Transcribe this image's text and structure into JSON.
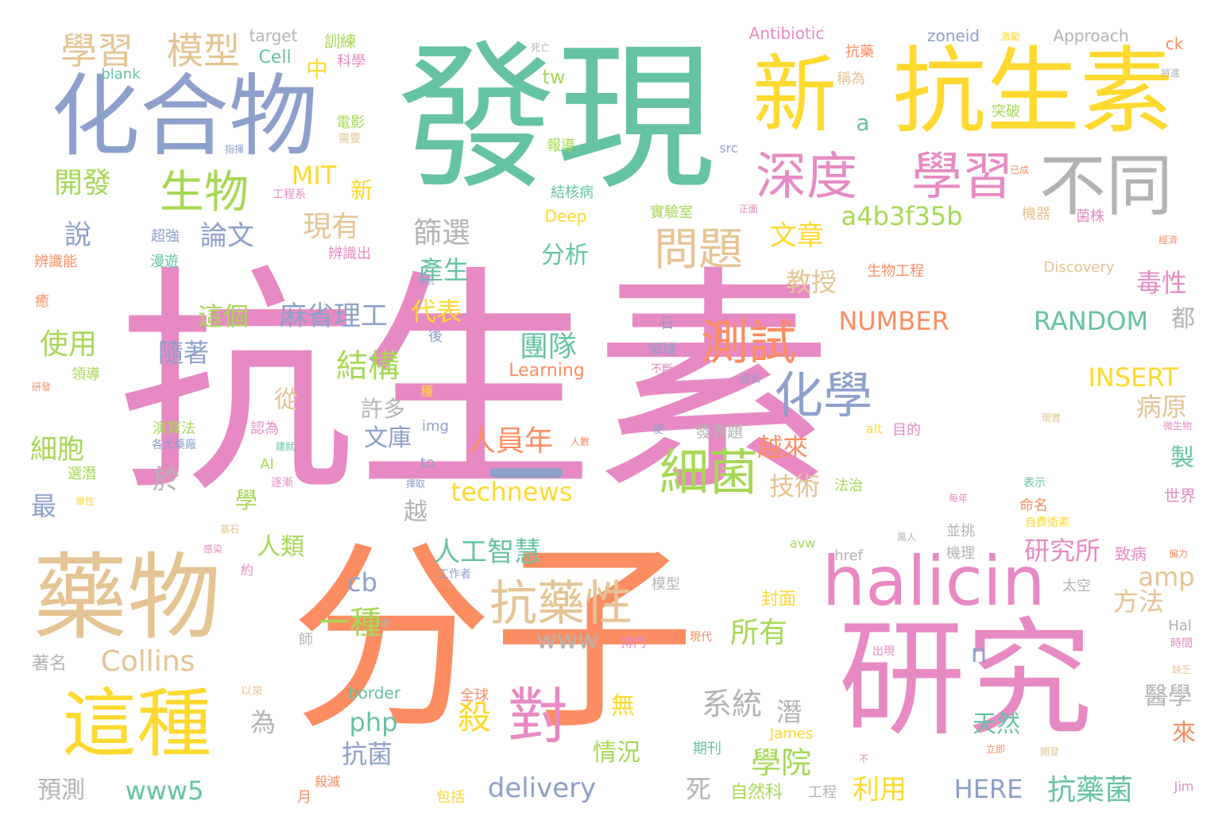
{
  "palette": {
    "pink": "#e78ac3",
    "orange": "#fc8d62",
    "teal": "#66c2a5",
    "blue": "#8da0cb",
    "lime": "#a6d854",
    "yellow": "#ffd92f",
    "tan": "#e5c494",
    "gray": "#b3b3b3"
  },
  "words": [
    {
      "text": "抗生素",
      "color": "pink"
    },
    {
      "text": "分子",
      "color": "orange"
    },
    {
      "text": "發現",
      "color": "teal"
    },
    {
      "text": "研究",
      "color": "pink"
    },
    {
      "text": "化合物",
      "color": "blue"
    },
    {
      "text": "抗生素",
      "color": "yellow"
    },
    {
      "text": "新",
      "color": "yellow"
    },
    {
      "text": "藥物",
      "color": "tan"
    },
    {
      "text": "halicin",
      "color": "pink"
    },
    {
      "text": "這種",
      "color": "yellow"
    },
    {
      "text": "不同",
      "color": "gray"
    },
    {
      "text": "深度",
      "color": "pink"
    },
    {
      "text": "學習",
      "color": "pink"
    },
    {
      "text": "生物",
      "color": "lime"
    },
    {
      "text": "對",
      "color": "pink"
    },
    {
      "text": "細菌",
      "color": "lime"
    },
    {
      "text": "化學",
      "color": "blue"
    },
    {
      "text": "測試",
      "color": "orange"
    },
    {
      "text": "抗藥性",
      "color": "tan"
    },
    {
      "text": "問題",
      "color": "tan"
    },
    {
      "text": "學習",
      "color": "tan"
    },
    {
      "text": "模型",
      "color": "tan"
    },
    {
      "text": "開發",
      "color": "lime"
    },
    {
      "text": "a4b3f35b",
      "color": "lime"
    },
    {
      "text": "MIT",
      "color": "yellow"
    },
    {
      "text": "論文",
      "color": "blue"
    },
    {
      "text": "現有",
      "color": "tan"
    },
    {
      "text": "篩選",
      "color": "gray"
    },
    {
      "text": "文章",
      "color": "yellow"
    },
    {
      "text": "分析",
      "color": "teal"
    },
    {
      "text": "產生",
      "color": "teal"
    },
    {
      "text": "麻省理工",
      "color": "blue"
    },
    {
      "text": "這個",
      "color": "lime"
    },
    {
      "text": "代表",
      "color": "yellow"
    },
    {
      "text": "教授",
      "color": "tan"
    },
    {
      "text": "NUMBER",
      "color": "orange"
    },
    {
      "text": "RANDOM",
      "color": "teal"
    },
    {
      "text": "毒性",
      "color": "pink"
    },
    {
      "text": "使用",
      "color": "lime"
    },
    {
      "text": "隨著",
      "color": "blue"
    },
    {
      "text": "團隊",
      "color": "teal"
    },
    {
      "text": "結構",
      "color": "lime"
    },
    {
      "text": "INSERT",
      "color": "yellow"
    },
    {
      "text": "病原",
      "color": "tan"
    },
    {
      "text": "人員年",
      "color": "orange"
    },
    {
      "text": "許多",
      "color": "gray"
    },
    {
      "text": "文庫",
      "color": "blue"
    },
    {
      "text": "細胞",
      "color": "lime"
    },
    {
      "text": "technews",
      "color": "yellow"
    },
    {
      "text": "技術",
      "color": "tan"
    },
    {
      "text": "越來",
      "color": "orange"
    },
    {
      "text": "人工智慧",
      "color": "teal"
    },
    {
      "text": "研究所",
      "color": "pink"
    },
    {
      "text": "amp",
      "color": "tan"
    },
    {
      "text": "方法",
      "color": "tan"
    },
    {
      "text": "一種",
      "color": "lime"
    },
    {
      "text": "所有",
      "color": "lime"
    },
    {
      "text": "www",
      "color": "gray"
    },
    {
      "text": "Collins",
      "color": "tan"
    },
    {
      "text": "系統",
      "color": "gray"
    },
    {
      "text": "php",
      "color": "teal"
    },
    {
      "text": "殺",
      "color": "yellow"
    },
    {
      "text": "學院",
      "color": "lime"
    },
    {
      "text": "天然",
      "color": "teal"
    },
    {
      "text": "醫學",
      "color": "gray"
    },
    {
      "text": "抗菌",
      "color": "blue"
    },
    {
      "text": "情況",
      "color": "lime"
    },
    {
      "text": "www5",
      "color": "teal"
    },
    {
      "text": "delivery",
      "color": "blue"
    },
    {
      "text": "利用",
      "color": "yellow"
    },
    {
      "text": "抗藥菌",
      "color": "teal"
    },
    {
      "text": "HERE",
      "color": "blue"
    },
    {
      "text": "預測",
      "color": "gray"
    },
    {
      "text": "著名",
      "color": "gray"
    },
    {
      "text": "人類",
      "color": "lime"
    },
    {
      "text": "cb",
      "color": "blue"
    },
    {
      "text": "最",
      "color": "blue"
    },
    {
      "text": "於",
      "color": "gray"
    },
    {
      "text": "從",
      "color": "tan"
    },
    {
      "text": "學",
      "color": "lime"
    },
    {
      "text": "越",
      "color": "gray"
    },
    {
      "text": "說",
      "color": "blue"
    },
    {
      "text": "為",
      "color": "gray"
    },
    {
      "text": "死",
      "color": "gray"
    },
    {
      "text": "潛",
      "color": "gray"
    },
    {
      "text": "無",
      "color": "yellow"
    },
    {
      "text": "來",
      "color": "orange"
    },
    {
      "text": "製",
      "color": "teal"
    },
    {
      "text": "都",
      "color": "gray"
    },
    {
      "text": "n",
      "color": "blue"
    },
    {
      "text": "a",
      "color": "teal"
    },
    {
      "text": "tw",
      "color": "lime"
    },
    {
      "text": "新",
      "color": "yellow"
    },
    {
      "text": "中",
      "color": "yellow"
    },
    {
      "text": "Cell",
      "color": "teal"
    },
    {
      "text": "target",
      "color": "gray"
    },
    {
      "text": "blank",
      "color": "teal"
    },
    {
      "text": "訓練",
      "color": "lime"
    },
    {
      "text": "科學",
      "color": "pink"
    },
    {
      "text": "Antibiotic",
      "color": "pink"
    },
    {
      "text": "zoneid",
      "color": "blue"
    },
    {
      "text": "Approach",
      "color": "gray"
    },
    {
      "text": "ck",
      "color": "orange"
    },
    {
      "text": "抗藥",
      "color": "orange"
    },
    {
      "text": "稱為",
      "color": "tan"
    },
    {
      "text": "突破",
      "color": "lime"
    },
    {
      "text": "電影",
      "color": "lime"
    },
    {
      "text": "報導",
      "color": "lime"
    },
    {
      "text": "需要",
      "color": "tan"
    },
    {
      "text": "src",
      "color": "blue"
    },
    {
      "text": "結核病",
      "color": "teal"
    },
    {
      "text": "Deep",
      "color": "yellow"
    },
    {
      "text": "實驗室",
      "color": "lime"
    },
    {
      "text": "機器",
      "color": "tan"
    },
    {
      "text": "菌株",
      "color": "pink"
    },
    {
      "text": "工程系",
      "color": "pink"
    },
    {
      "text": "超強",
      "color": "blue"
    },
    {
      "text": "漫遊",
      "color": "teal"
    },
    {
      "text": "辨識出",
      "color": "pink"
    },
    {
      "text": "辨識能",
      "color": "orange"
    },
    {
      "text": "生物工程",
      "color": "orange"
    },
    {
      "text": "Discovery",
      "color": "tan"
    },
    {
      "text": "癒",
      "color": "orange"
    },
    {
      "text": "Learning",
      "color": "orange"
    },
    {
      "text": "領域",
      "color": "blue"
    },
    {
      "text": "不斷",
      "color": "pink"
    },
    {
      "text": "日",
      "color": "blue"
    },
    {
      "text": "後",
      "color": "blue"
    },
    {
      "text": "領導",
      "color": "lime"
    },
    {
      "text": "研發",
      "color": "orange"
    },
    {
      "text": "img",
      "color": "blue"
    },
    {
      "text": "演算法",
      "color": "lime"
    },
    {
      "text": "認為",
      "color": "pink"
    },
    {
      "text": "AI",
      "color": "lime"
    },
    {
      "text": "to",
      "color": "blue"
    },
    {
      "text": "法治",
      "color": "lime"
    },
    {
      "text": "發表題",
      "color": "gray"
    },
    {
      "text": "目的",
      "color": "pink"
    },
    {
      "text": "alt",
      "color": "yellow"
    },
    {
      "text": "世界",
      "color": "pink"
    },
    {
      "text": "選潛",
      "color": "lime"
    },
    {
      "text": "命名",
      "color": "orange"
    },
    {
      "text": "自費衛素",
      "color": "yellow"
    },
    {
      "text": "並挑",
      "color": "gray"
    },
    {
      "text": "致病",
      "color": "pink"
    },
    {
      "text": "機理",
      "color": "gray"
    },
    {
      "text": "href",
      "color": "gray"
    },
    {
      "text": "avw",
      "color": "lime"
    },
    {
      "text": "工作者",
      "color": "blue"
    },
    {
      "text": "模型",
      "color": "gray"
    },
    {
      "text": "封面",
      "color": "yellow"
    },
    {
      "text": "太空",
      "color": "gray"
    },
    {
      "text": "Hal",
      "color": "gray"
    },
    {
      "text": "師",
      "color": "gray"
    },
    {
      "text": "搏門",
      "color": "pink"
    },
    {
      "text": "現代",
      "color": "orange"
    },
    {
      "text": "時間",
      "color": "pink"
    },
    {
      "text": "border",
      "color": "teal"
    },
    {
      "text": "全球",
      "color": "orange"
    },
    {
      "text": "以來",
      "color": "tan"
    },
    {
      "text": "自然科",
      "color": "lime"
    },
    {
      "text": "工程",
      "color": "gray"
    },
    {
      "text": "期刊",
      "color": "teal"
    },
    {
      "text": "James",
      "color": "yellow"
    },
    {
      "text": "月",
      "color": "orange"
    },
    {
      "text": "殺滅",
      "color": "orange"
    },
    {
      "text": "包括",
      "color": "yellow"
    },
    {
      "text": "Jim",
      "color": "pink"
    },
    {
      "text": "出現",
      "color": "pink"
    },
    {
      "text": "立即",
      "color": "orange"
    },
    {
      "text": "約",
      "color": "pink"
    },
    {
      "text": "逐漸",
      "color": "pink"
    },
    {
      "text": "表示",
      "color": "teal"
    },
    {
      "text": "每年",
      "color": "pink"
    },
    {
      "text": "萬人",
      "color": "gray"
    },
    {
      "text": "過去",
      "color": "blue"
    },
    {
      "text": "使",
      "color": "blue"
    },
    {
      "text": "人數",
      "color": "orange"
    },
    {
      "text": "種",
      "color": "yellow"
    },
    {
      "text": "擇取",
      "color": "blue"
    },
    {
      "text": "現實",
      "color": "tan"
    },
    {
      "text": "經濟",
      "color": "orange"
    },
    {
      "text": "正面",
      "color": "pink"
    },
    {
      "text": "已成",
      "color": "orange"
    },
    {
      "text": "將進",
      "color": "gray"
    },
    {
      "text": "死亡",
      "color": "gray"
    },
    {
      "text": "激勵",
      "color": "yellow"
    },
    {
      "text": "指揮",
      "color": "blue"
    },
    {
      "text": "各大藥廠",
      "color": "blue"
    },
    {
      "text": "建就",
      "color": "teal"
    },
    {
      "text": "基石",
      "color": "tan"
    },
    {
      "text": "單性",
      "color": "yellow"
    },
    {
      "text": "感染",
      "color": "pink"
    },
    {
      "text": "缺乏",
      "color": "tan"
    },
    {
      "text": "偏力",
      "color": "orange"
    },
    {
      "text": "微生物",
      "color": "pink"
    },
    {
      "text": "開發",
      "color": "tan"
    },
    {
      "text": "不",
      "color": "pink"
    },
    {
      "text": "團抗",
      "color": "blue"
    },
    {
      "text": "會",
      "color": "gray"
    }
  ]
}
